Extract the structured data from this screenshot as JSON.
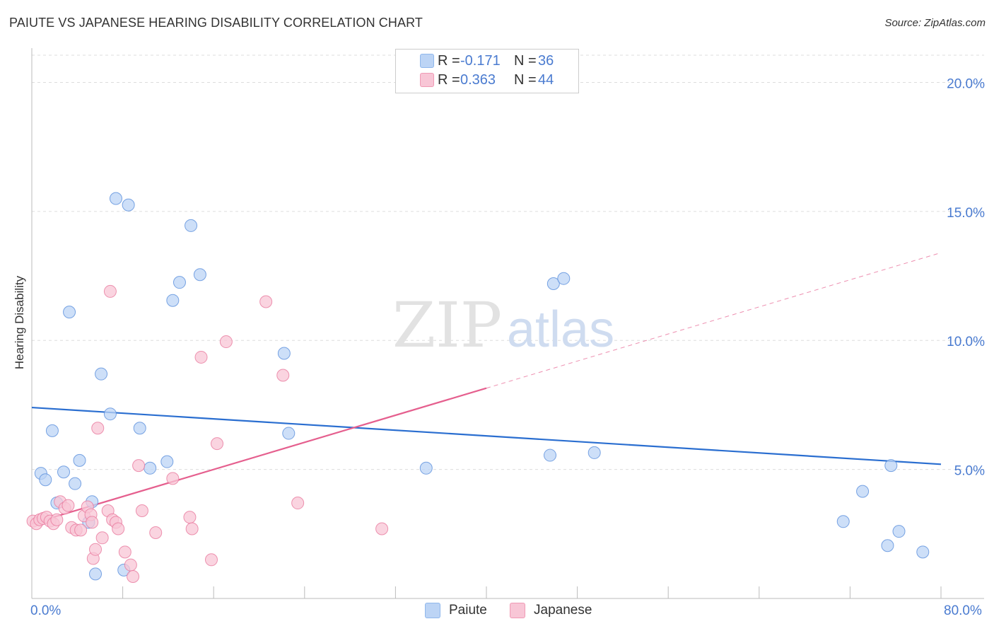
{
  "title": "PAIUTE VS JAPANESE HEARING DISABILITY CORRELATION CHART",
  "source": "Source: ZipAtlas.com",
  "watermark": {
    "zip": "ZIP",
    "atlas": "atlas"
  },
  "legend_stats": [
    {
      "name": "Paiute",
      "r_label": "R =",
      "r_value": "-0.171",
      "n_label": "N =",
      "n_value": "36",
      "color": "#8fb7ec",
      "fill": "#bcd4f5"
    },
    {
      "name": "Japanese",
      "r_label": "R =",
      "r_value": "0.363",
      "n_label": "N =",
      "n_value": "44",
      "color": "#f09ab5",
      "fill": "#f8c6d6"
    }
  ],
  "chart_data": {
    "type": "scatter",
    "title": "PAIUTE VS JAPANESE HEARING DISABILITY CORRELATION CHART",
    "xlabel": "",
    "ylabel": "Hearing Disability",
    "xlim": [
      0,
      80
    ],
    "ylim": [
      0,
      21
    ],
    "x_tick_labels": [
      "0.0%",
      "80.0%"
    ],
    "y_ticks": [
      5,
      10,
      15,
      20
    ],
    "y_tick_labels": [
      "5.0%",
      "10.0%",
      "15.0%",
      "20.0%"
    ],
    "legend": [
      "Paiute",
      "Japanese"
    ],
    "series": [
      {
        "name": "Paiute",
        "color": "#5a8fdc",
        "fill": "#bcd4f5",
        "line_color": "#2a6ed0",
        "trend": {
          "x0": 0,
          "y0": 7.4,
          "x1": 80,
          "y1": 5.2
        },
        "points": [
          [
            0.8,
            4.85
          ],
          [
            1.2,
            4.6
          ],
          [
            1.8,
            6.5
          ],
          [
            2.2,
            3.7
          ],
          [
            2.8,
            4.9
          ],
          [
            3.3,
            11.1
          ],
          [
            3.8,
            4.45
          ],
          [
            4.2,
            5.35
          ],
          [
            5.0,
            2.95
          ],
          [
            5.3,
            3.75
          ],
          [
            5.6,
            0.95
          ],
          [
            6.1,
            8.7
          ],
          [
            6.9,
            7.15
          ],
          [
            7.4,
            15.5
          ],
          [
            8.1,
            1.1
          ],
          [
            8.5,
            15.25
          ],
          [
            9.5,
            6.6
          ],
          [
            10.4,
            5.05
          ],
          [
            11.9,
            5.3
          ],
          [
            12.4,
            11.55
          ],
          [
            13.0,
            12.25
          ],
          [
            14.0,
            14.45
          ],
          [
            14.8,
            12.55
          ],
          [
            22.2,
            9.5
          ],
          [
            22.6,
            6.4
          ],
          [
            34.7,
            5.05
          ],
          [
            45.6,
            5.55
          ],
          [
            45.9,
            12.2
          ],
          [
            46.8,
            12.4
          ],
          [
            49.5,
            5.65
          ],
          [
            71.4,
            2.98
          ],
          [
            73.1,
            4.15
          ],
          [
            75.3,
            2.05
          ],
          [
            76.3,
            2.6
          ],
          [
            78.4,
            1.8
          ],
          [
            75.6,
            5.15
          ]
        ]
      },
      {
        "name": "Japanese",
        "color": "#e9799d",
        "fill": "#f8c6d6",
        "line_color": "#e55f8e",
        "trend": {
          "x0": 0,
          "y0": 2.9,
          "x1": 40,
          "y1": 8.15
        },
        "trend_dashed": {
          "x0": 40,
          "y0": 8.15,
          "x1": 80,
          "y1": 13.4
        },
        "points": [
          [
            0.1,
            3.0
          ],
          [
            0.4,
            2.9
          ],
          [
            0.7,
            3.05
          ],
          [
            1.0,
            3.1
          ],
          [
            1.3,
            3.15
          ],
          [
            1.6,
            3.0
          ],
          [
            1.9,
            2.9
          ],
          [
            2.2,
            3.05
          ],
          [
            2.5,
            3.75
          ],
          [
            2.9,
            3.5
          ],
          [
            3.2,
            3.6
          ],
          [
            3.5,
            2.75
          ],
          [
            3.9,
            2.65
          ],
          [
            4.3,
            2.65
          ],
          [
            4.6,
            3.2
          ],
          [
            4.9,
            3.55
          ],
          [
            5.2,
            3.25
          ],
          [
            5.3,
            2.95
          ],
          [
            5.4,
            1.55
          ],
          [
            5.8,
            6.6
          ],
          [
            5.6,
            1.9
          ],
          [
            6.2,
            2.35
          ],
          [
            6.7,
            3.4
          ],
          [
            6.9,
            11.9
          ],
          [
            7.1,
            3.05
          ],
          [
            7.4,
            2.95
          ],
          [
            7.6,
            2.7
          ],
          [
            8.2,
            1.8
          ],
          [
            8.7,
            1.3
          ],
          [
            8.9,
            0.85
          ],
          [
            9.4,
            5.15
          ],
          [
            9.7,
            3.4
          ],
          [
            10.9,
            2.55
          ],
          [
            12.4,
            4.65
          ],
          [
            13.9,
            3.15
          ],
          [
            14.1,
            2.7
          ],
          [
            14.9,
            9.35
          ],
          [
            15.8,
            1.5
          ],
          [
            16.3,
            6.0
          ],
          [
            17.1,
            9.95
          ],
          [
            20.6,
            11.5
          ],
          [
            22.1,
            8.65
          ],
          [
            23.4,
            3.7
          ],
          [
            30.8,
            2.7
          ]
        ]
      }
    ]
  }
}
